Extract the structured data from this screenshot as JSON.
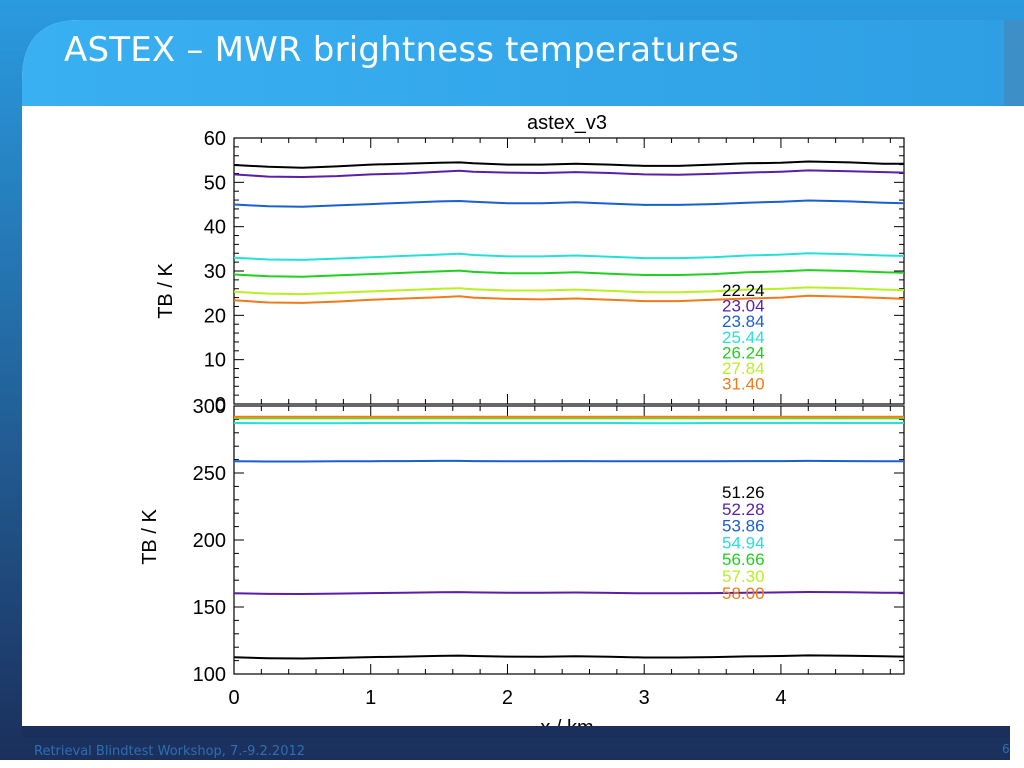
{
  "slide": {
    "title": "ASTEX – MWR brightness temperatures",
    "footer": "Retrieval Blindtest Workshop, 7.-9.2.2012",
    "page_number": "6",
    "colors": {
      "frame_dark": "#1b2f5c",
      "frame_blue": "#2a9be0",
      "header_light": "#37aef0",
      "footer_text": "#2f6fb0"
    }
  },
  "chart_data": [
    {
      "type": "line",
      "title": "astex_v3",
      "ylabel": "TB / K",
      "xlabel": "",
      "xlim": [
        0,
        4.9
      ],
      "ylim": [
        0,
        60
      ],
      "yticks": [
        0,
        10,
        20,
        30,
        40,
        50,
        60
      ],
      "legend_placement": "lower-right",
      "x": [
        0,
        0.25,
        0.5,
        0.75,
        1.0,
        1.25,
        1.5,
        1.65,
        1.75,
        2.0,
        2.25,
        2.5,
        2.75,
        3.0,
        3.25,
        3.5,
        3.75,
        4.0,
        4.2,
        4.5,
        4.75,
        4.9
      ],
      "series": [
        {
          "name": "22.24",
          "color": "#000000",
          "values": [
            53.9,
            53.5,
            53.3,
            53.6,
            54.0,
            54.2,
            54.4,
            54.5,
            54.3,
            54.0,
            54.0,
            54.2,
            54.0,
            53.7,
            53.7,
            54.0,
            54.3,
            54.4,
            54.7,
            54.5,
            54.2,
            54.2
          ]
        },
        {
          "name": "23.04",
          "color": "#5a1fa8",
          "values": [
            51.8,
            51.3,
            51.2,
            51.4,
            51.8,
            52.0,
            52.4,
            52.6,
            52.4,
            52.2,
            52.1,
            52.3,
            52.1,
            51.8,
            51.7,
            51.9,
            52.2,
            52.4,
            52.7,
            52.5,
            52.3,
            52.2
          ]
        },
        {
          "name": "23.84",
          "color": "#1a5fd0",
          "values": [
            45.0,
            44.6,
            44.5,
            44.8,
            45.1,
            45.4,
            45.7,
            45.8,
            45.6,
            45.3,
            45.3,
            45.5,
            45.2,
            44.9,
            44.9,
            45.1,
            45.4,
            45.6,
            45.9,
            45.7,
            45.4,
            45.3
          ]
        },
        {
          "name": "25.44",
          "color": "#25e0d8",
          "values": [
            33.0,
            32.6,
            32.5,
            32.8,
            33.1,
            33.4,
            33.7,
            33.9,
            33.6,
            33.3,
            33.3,
            33.5,
            33.2,
            32.9,
            32.9,
            33.1,
            33.5,
            33.7,
            34.0,
            33.8,
            33.5,
            33.4
          ]
        },
        {
          "name": "26.24",
          "color": "#20d020",
          "values": [
            29.2,
            28.8,
            28.7,
            29.0,
            29.3,
            29.6,
            29.9,
            30.1,
            29.8,
            29.5,
            29.5,
            29.7,
            29.4,
            29.1,
            29.1,
            29.3,
            29.7,
            29.9,
            30.2,
            30.0,
            29.7,
            29.6
          ]
        },
        {
          "name": "27.84",
          "color": "#b8f020",
          "values": [
            25.3,
            24.9,
            24.8,
            25.1,
            25.4,
            25.7,
            26.0,
            26.1,
            25.9,
            25.6,
            25.6,
            25.8,
            25.5,
            25.2,
            25.2,
            25.4,
            25.8,
            26.0,
            26.3,
            26.1,
            25.8,
            25.7
          ]
        },
        {
          "name": "31.40",
          "color": "#f07a1a",
          "values": [
            23.4,
            22.9,
            22.8,
            23.1,
            23.5,
            23.8,
            24.1,
            24.3,
            24.0,
            23.7,
            23.6,
            23.8,
            23.5,
            23.2,
            23.2,
            23.5,
            23.8,
            24.0,
            24.4,
            24.2,
            23.9,
            23.7
          ]
        }
      ]
    },
    {
      "type": "line",
      "title": "",
      "ylabel": "TB / K",
      "xlabel": "x / km",
      "xlim": [
        0,
        4.9
      ],
      "ylim": [
        100,
        300
      ],
      "xticks": [
        0,
        1,
        2,
        3,
        4
      ],
      "yticks": [
        100,
        150,
        200,
        250,
        300
      ],
      "legend_placement": "center-right",
      "x": [
        0,
        0.25,
        0.5,
        0.75,
        1.0,
        1.25,
        1.5,
        1.65,
        1.75,
        2.0,
        2.25,
        2.5,
        2.75,
        3.0,
        3.25,
        3.5,
        3.75,
        4.0,
        4.2,
        4.5,
        4.75,
        4.9
      ],
      "series": [
        {
          "name": "51.26",
          "color": "#000000",
          "values": [
            112.5,
            111.8,
            111.6,
            112.0,
            112.6,
            113.0,
            113.5,
            113.7,
            113.4,
            113.0,
            112.9,
            113.2,
            112.8,
            112.3,
            112.3,
            112.6,
            113.1,
            113.4,
            113.9,
            113.6,
            113.2,
            113.0
          ]
        },
        {
          "name": "52.28",
          "color": "#5a1fa8",
          "values": [
            160.3,
            159.8,
            159.7,
            160.0,
            160.4,
            160.6,
            161.0,
            161.1,
            160.9,
            160.6,
            160.6,
            160.8,
            160.5,
            160.2,
            160.2,
            160.4,
            160.7,
            160.9,
            161.2,
            161.0,
            160.7,
            160.6
          ]
        },
        {
          "name": "53.86",
          "color": "#1a5fd0",
          "values": [
            258.8,
            258.6,
            258.6,
            258.7,
            258.8,
            258.9,
            259.0,
            259.0,
            258.9,
            258.8,
            258.8,
            258.9,
            258.8,
            258.7,
            258.7,
            258.8,
            258.9,
            258.9,
            259.0,
            258.9,
            258.8,
            258.8
          ]
        },
        {
          "name": "54.94",
          "color": "#25e0d8",
          "values": [
            287.3,
            287.2,
            287.2,
            287.2,
            287.3,
            287.3,
            287.4,
            287.4,
            287.3,
            287.3,
            287.3,
            287.3,
            287.3,
            287.2,
            287.2,
            287.3,
            287.3,
            287.3,
            287.4,
            287.3,
            287.3,
            287.3
          ]
        },
        {
          "name": "56.66",
          "color": "#20d020",
          "values": [
            290.8,
            290.8,
            290.8,
            290.8,
            290.8,
            290.8,
            290.9,
            290.9,
            290.8,
            290.8,
            290.8,
            290.8,
            290.8,
            290.8,
            290.8,
            290.8,
            290.8,
            290.8,
            290.9,
            290.8,
            290.8,
            290.8
          ]
        },
        {
          "name": "57.30",
          "color": "#b8f020",
          "values": [
            291.5,
            291.5,
            291.5,
            291.5,
            291.5,
            291.5,
            291.5,
            291.5,
            291.5,
            291.5,
            291.5,
            291.5,
            291.5,
            291.5,
            291.5,
            291.5,
            291.5,
            291.5,
            291.5,
            291.5,
            291.5,
            291.5
          ]
        },
        {
          "name": "58.00",
          "color": "#f07a1a",
          "values": [
            292.0,
            292.0,
            292.0,
            292.0,
            292.0,
            292.0,
            292.0,
            292.0,
            292.0,
            292.0,
            292.0,
            292.0,
            292.0,
            292.0,
            292.0,
            292.0,
            292.0,
            292.0,
            292.0,
            292.0,
            292.0,
            292.0
          ]
        }
      ]
    }
  ]
}
